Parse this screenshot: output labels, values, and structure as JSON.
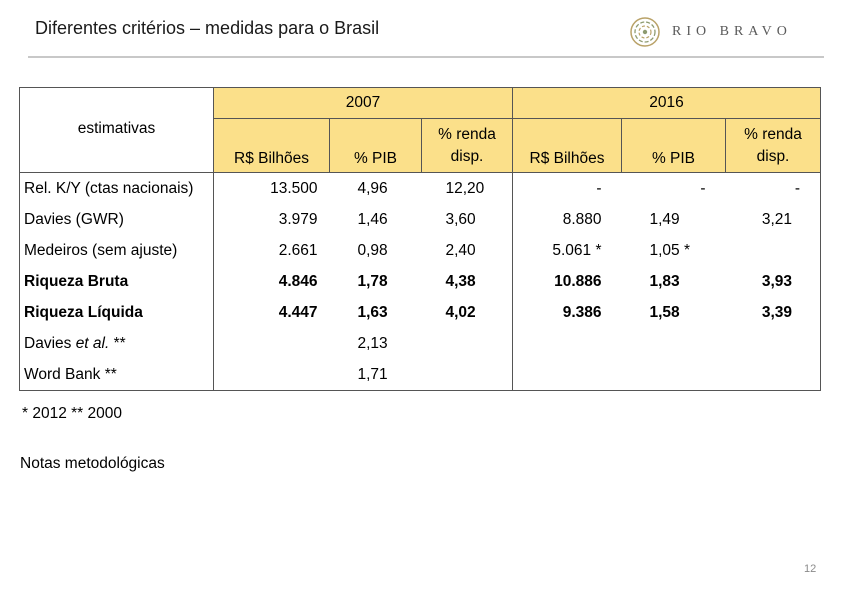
{
  "slide": {
    "title": "Diferentes critérios – medidas para o Brasil",
    "logo_text": "RIO BRAVO",
    "page_number": "12"
  },
  "table": {
    "label_header": "estimativas",
    "year_headers": [
      "2007",
      "2016"
    ],
    "sub_headers": {
      "rs_bilhoes": "R$ Bilhões",
      "pct_pib": "% PIB",
      "renda_line1": "% renda",
      "renda_line2": "disp."
    },
    "rows": [
      {
        "label": "Rel. K/Y (ctas nacionais)",
        "bold": false,
        "v2007": [
          "13.500",
          "4,96",
          "12,20"
        ],
        "v2016": [
          "-",
          "-",
          "-"
        ]
      },
      {
        "label": "Davies (GWR)",
        "bold": false,
        "v2007": [
          "3.979",
          "1,46",
          "3,60"
        ],
        "v2016": [
          "8.880",
          "1,49",
          "3,21"
        ]
      },
      {
        "label": "Medeiros (sem ajuste)",
        "bold": false,
        "v2007": [
          "2.661",
          "0,98",
          "2,40"
        ],
        "v2016": [
          "5.061 *",
          "1,05 *",
          ""
        ]
      },
      {
        "label": "Riqueza Bruta",
        "bold": true,
        "v2007": [
          "4.846",
          "1,78",
          "4,38"
        ],
        "v2016": [
          "10.886",
          "1,83",
          "3,93"
        ]
      },
      {
        "label": "Riqueza Líquida",
        "bold": true,
        "v2007": [
          "4.447",
          "1,63",
          "4,02"
        ],
        "v2016": [
          "9.386",
          "1,58",
          "3,39"
        ]
      },
      {
        "label_prefix": "Davies ",
        "label_italic": "et al.",
        "label_suffix": " **",
        "bold": false,
        "v2007": [
          "",
          "2,13",
          ""
        ],
        "v2016": [
          "",
          "",
          ""
        ]
      },
      {
        "label": "Word Bank **",
        "bold": false,
        "v2007": [
          "",
          "1,71",
          ""
        ],
        "v2016": [
          "",
          "",
          ""
        ]
      }
    ]
  },
  "footnote": "* 2012 ** 2000",
  "notes_label": "Notas metodológicas",
  "colors": {
    "header_fill": "#fbe08a",
    "rule": "#c8c8c8",
    "logo_gold": "#b9a268"
  }
}
